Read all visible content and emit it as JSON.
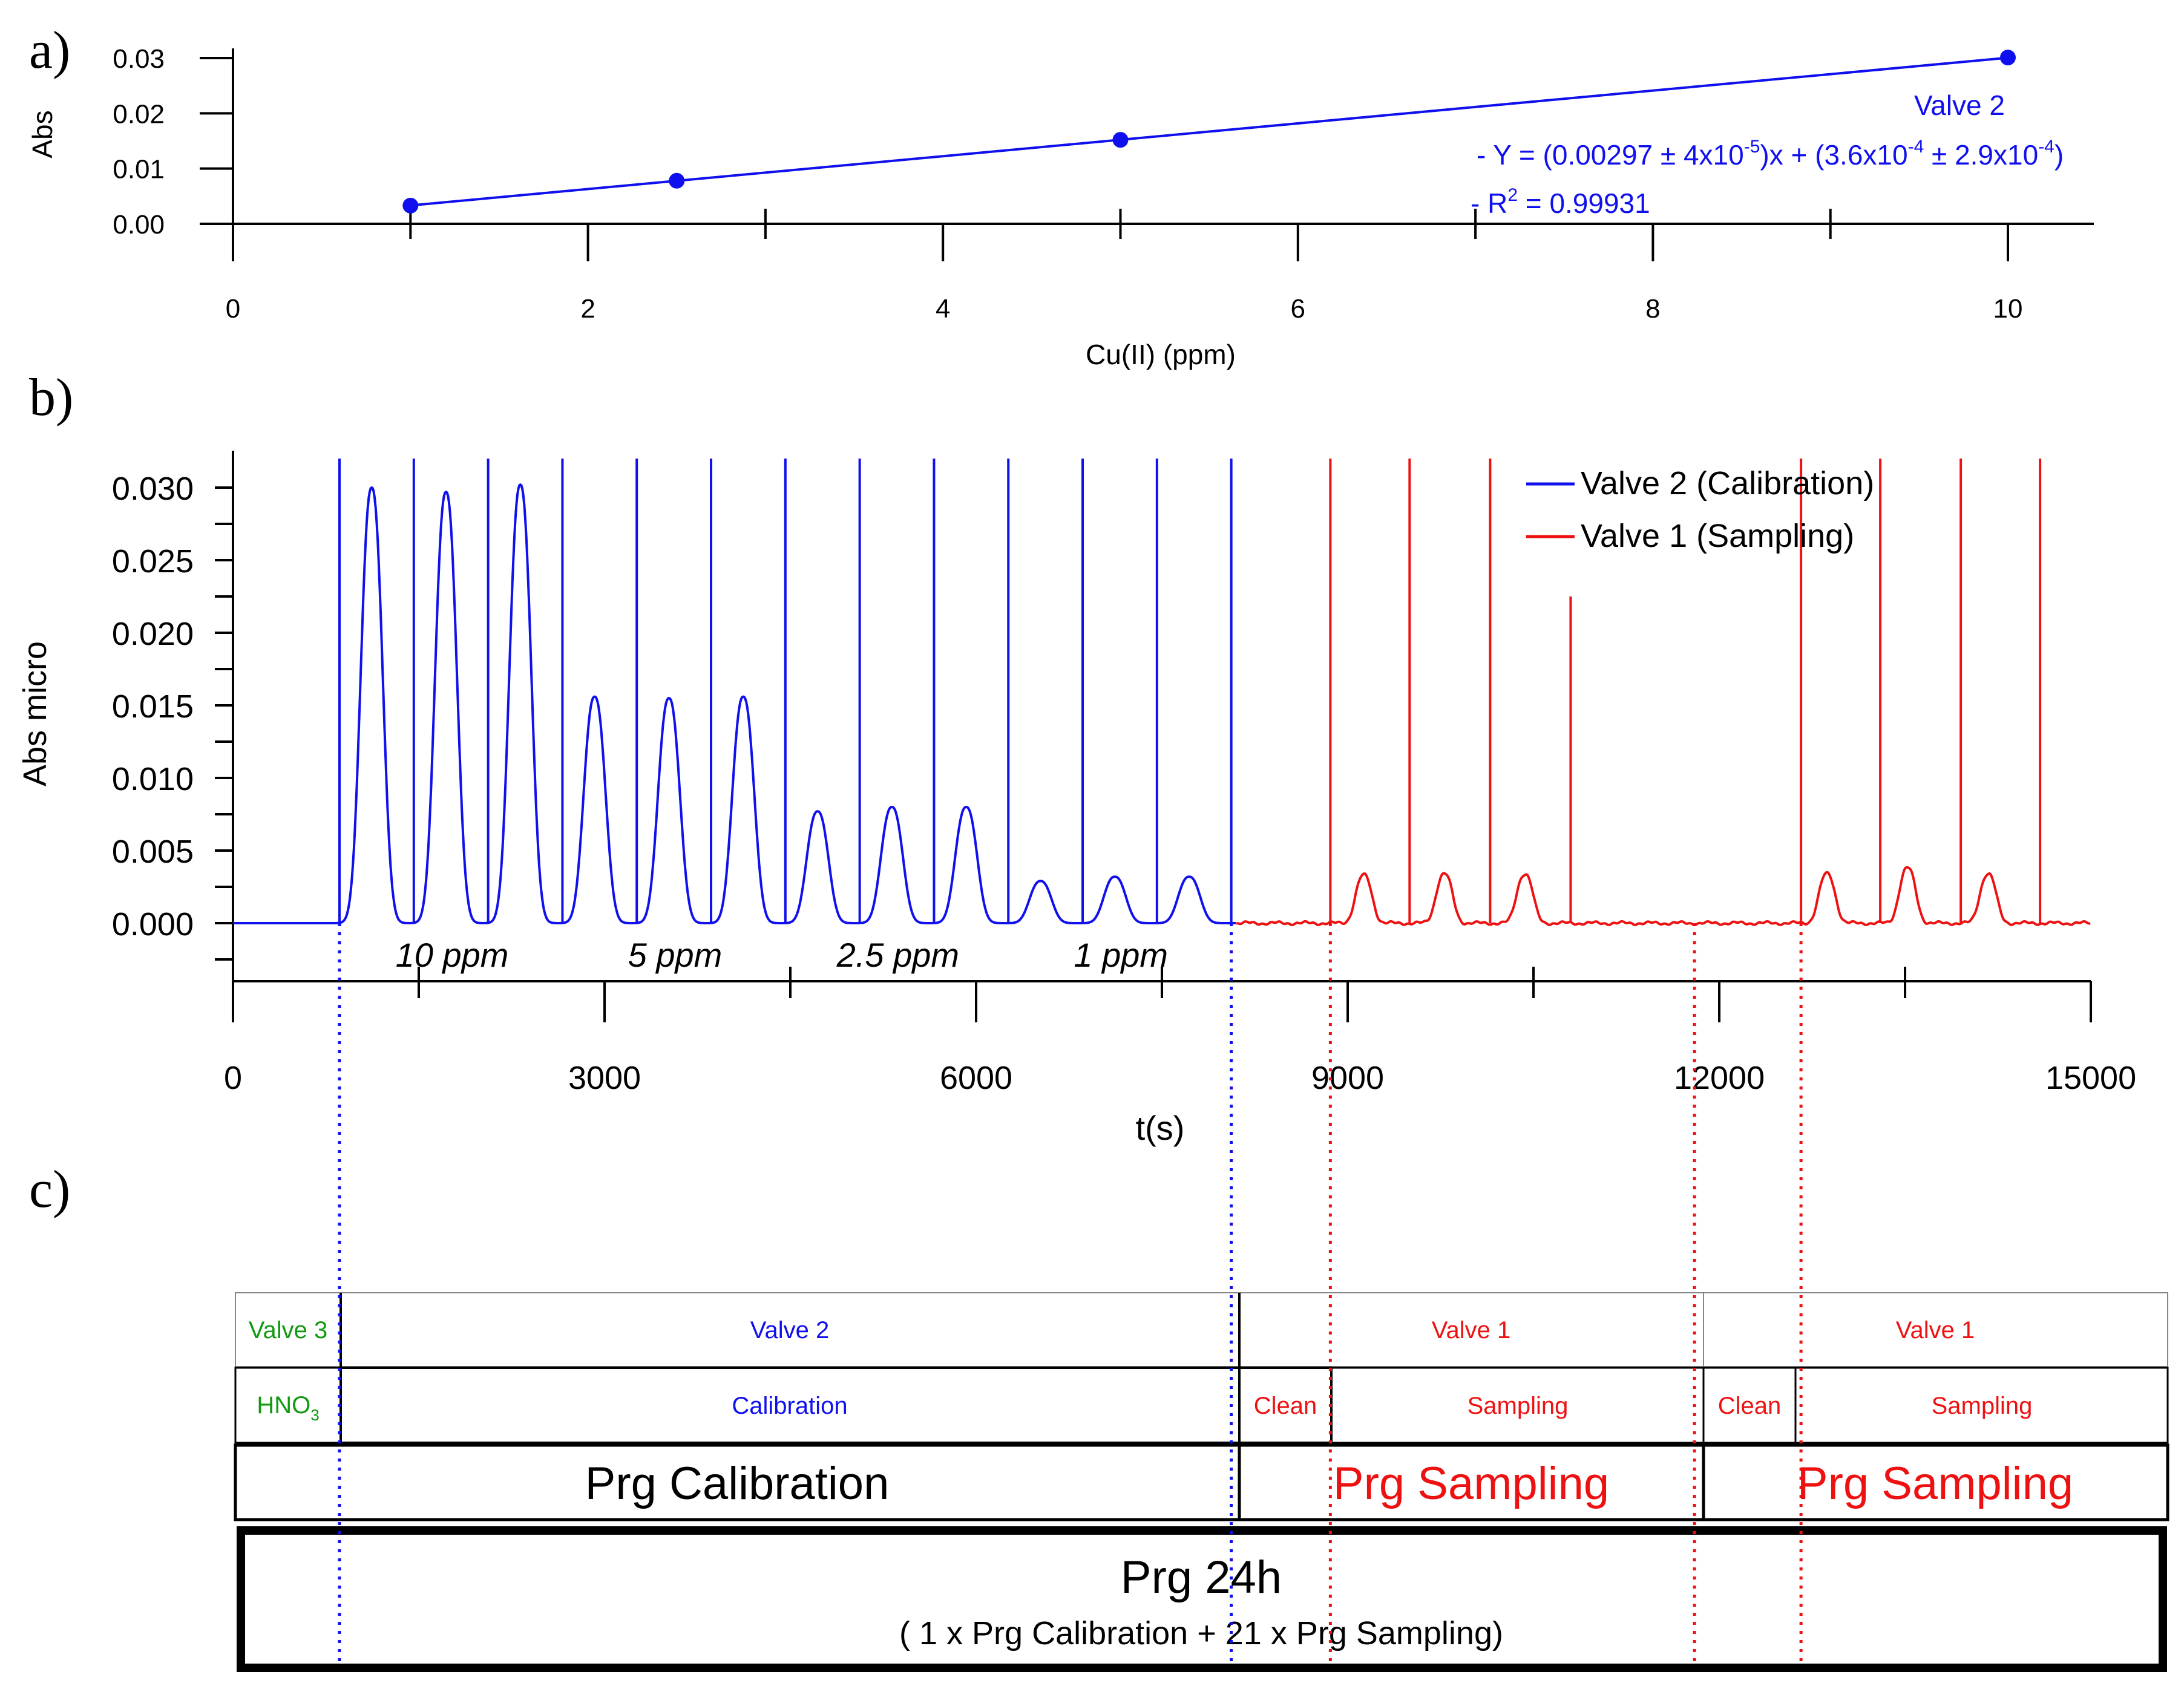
{
  "colors": {
    "blue": "#1010ee",
    "red": "#ee1111",
    "green": "#119911",
    "black": "#000000",
    "grey": "#888888"
  },
  "panels": {
    "a": "a)",
    "b": "b)",
    "c": "c)"
  },
  "chart_data": [
    {
      "id": "panel-a",
      "type": "scatter",
      "title": "",
      "xlabel": "Cu(II) (ppm)",
      "ylabel": "Abs",
      "xlim": [
        0,
        10.5
      ],
      "ylim": [
        0,
        0.03
      ],
      "xticks": [
        0,
        2,
        4,
        6,
        8,
        10
      ],
      "yticks": [
        0,
        0.01,
        0.02,
        0.03
      ],
      "ytick_labels": [
        "0.00",
        "0.01",
        "0.02",
        "0.03"
      ],
      "x": [
        1,
        2.5,
        5,
        10
      ],
      "y": [
        0.0033,
        0.0078,
        0.0152,
        0.0301
      ],
      "fit": {
        "slope": 0.00297,
        "intercept": 0.00036
      },
      "annotation": {
        "title": "Valve 2",
        "eq_prefix": "- Y = (0.00297 ± 4x10",
        "eq_exp1": "-5",
        "eq_mid": ")x + (3.6x10",
        "eq_exp2": "-4",
        "eq_mid2": " ± 2.9x10",
        "eq_exp3": "-4",
        "eq_end": ")",
        "r2_prefix": "- R",
        "r2_exp": "2",
        "r2_value": " = 0.99931"
      }
    },
    {
      "id": "panel-b",
      "type": "line",
      "xlabel": "t(s)",
      "ylabel": "Abs micro",
      "xlim": [
        0,
        15000
      ],
      "ylim": [
        -0.003,
        0.032
      ],
      "xticks": [
        0,
        3000,
        6000,
        9000,
        12000,
        15000
      ],
      "yticks": [
        0,
        0.005,
        0.01,
        0.015,
        0.02,
        0.025,
        0.03
      ],
      "ytick_labels": [
        "0.000",
        "0.005",
        "0.010",
        "0.015",
        "0.020",
        "0.025",
        "0.030"
      ],
      "legend": [
        "Valve 2 (Calibration)",
        "Valve 1 (Sampling)"
      ],
      "legend_position": "top-right",
      "series": [
        {
          "name": "Valve 2 (Calibration)",
          "color": "blue",
          "range": [
            0,
            8100
          ],
          "peaks": [
            {
              "t": 1120,
              "h": 0.03
            },
            {
              "t": 1720,
              "h": 0.0297
            },
            {
              "t": 2320,
              "h": 0.0302
            },
            {
              "t": 2920,
              "h": 0.0156
            },
            {
              "t": 3520,
              "h": 0.0155
            },
            {
              "t": 4120,
              "h": 0.0156
            },
            {
              "t": 4720,
              "h": 0.0077
            },
            {
              "t": 5320,
              "h": 0.008
            },
            {
              "t": 5920,
              "h": 0.008
            },
            {
              "t": 6520,
              "h": 0.0029
            },
            {
              "t": 7120,
              "h": 0.0032
            },
            {
              "t": 7720,
              "h": 0.0032
            }
          ],
          "spikes": [
            860,
            1460,
            2060,
            2660,
            3260,
            3860,
            4460,
            5060,
            5660,
            6260,
            6860,
            7460,
            8060
          ]
        },
        {
          "name": "Valve 1 (Sampling)",
          "color": "red",
          "range": [
            8100,
            15000
          ],
          "peaks": [
            {
              "t": 9130,
              "h": 0.0033
            },
            {
              "t": 9780,
              "h": 0.0034
            },
            {
              "t": 10430,
              "h": 0.0034
            },
            {
              "t": 12870,
              "h": 0.0034
            },
            {
              "t": 13520,
              "h": 0.0038
            },
            {
              "t": 14170,
              "h": 0.0034
            }
          ],
          "spikes": [
            8860,
            9500,
            10150,
            10800,
            12660,
            13300,
            13950,
            14590
          ],
          "spike_top": {
            "10800": 0.0225
          }
        }
      ],
      "concentration_labels": [
        {
          "text": "10 ppm",
          "t": 1720
        },
        {
          "text": "5 ppm",
          "t": 3520
        },
        {
          "text": "2.5 ppm",
          "t": 5320
        },
        {
          "text": "1 ppm",
          "t": 7120
        }
      ],
      "dotted_markers": [
        {
          "t": 860,
          "color": "blue"
        },
        {
          "t": 8060,
          "color": "blue"
        },
        {
          "t": 8860,
          "color": "red"
        },
        {
          "t": 11800,
          "color": "red"
        },
        {
          "t": 12660,
          "color": "red"
        }
      ]
    }
  ],
  "schedule": {
    "valve3": "Valve 3",
    "valve2": "Valve 2",
    "valve1a": "Valve 1",
    "valve1b": "Valve 1",
    "hno3": "HNO",
    "hno3_sub": "3",
    "calibration": "Calibration",
    "clean1": "Clean",
    "sampling1": "Sampling",
    "clean2": "Clean",
    "sampling2": "Sampling",
    "prg_calibration": "Prg Calibration",
    "prg_sampling1": "Prg Sampling",
    "prg_sampling2": "Prg Sampling",
    "prg24": "Prg 24h",
    "prg24_sub": "( 1 x Prg Calibration + 21 x Prg Sampling)"
  }
}
